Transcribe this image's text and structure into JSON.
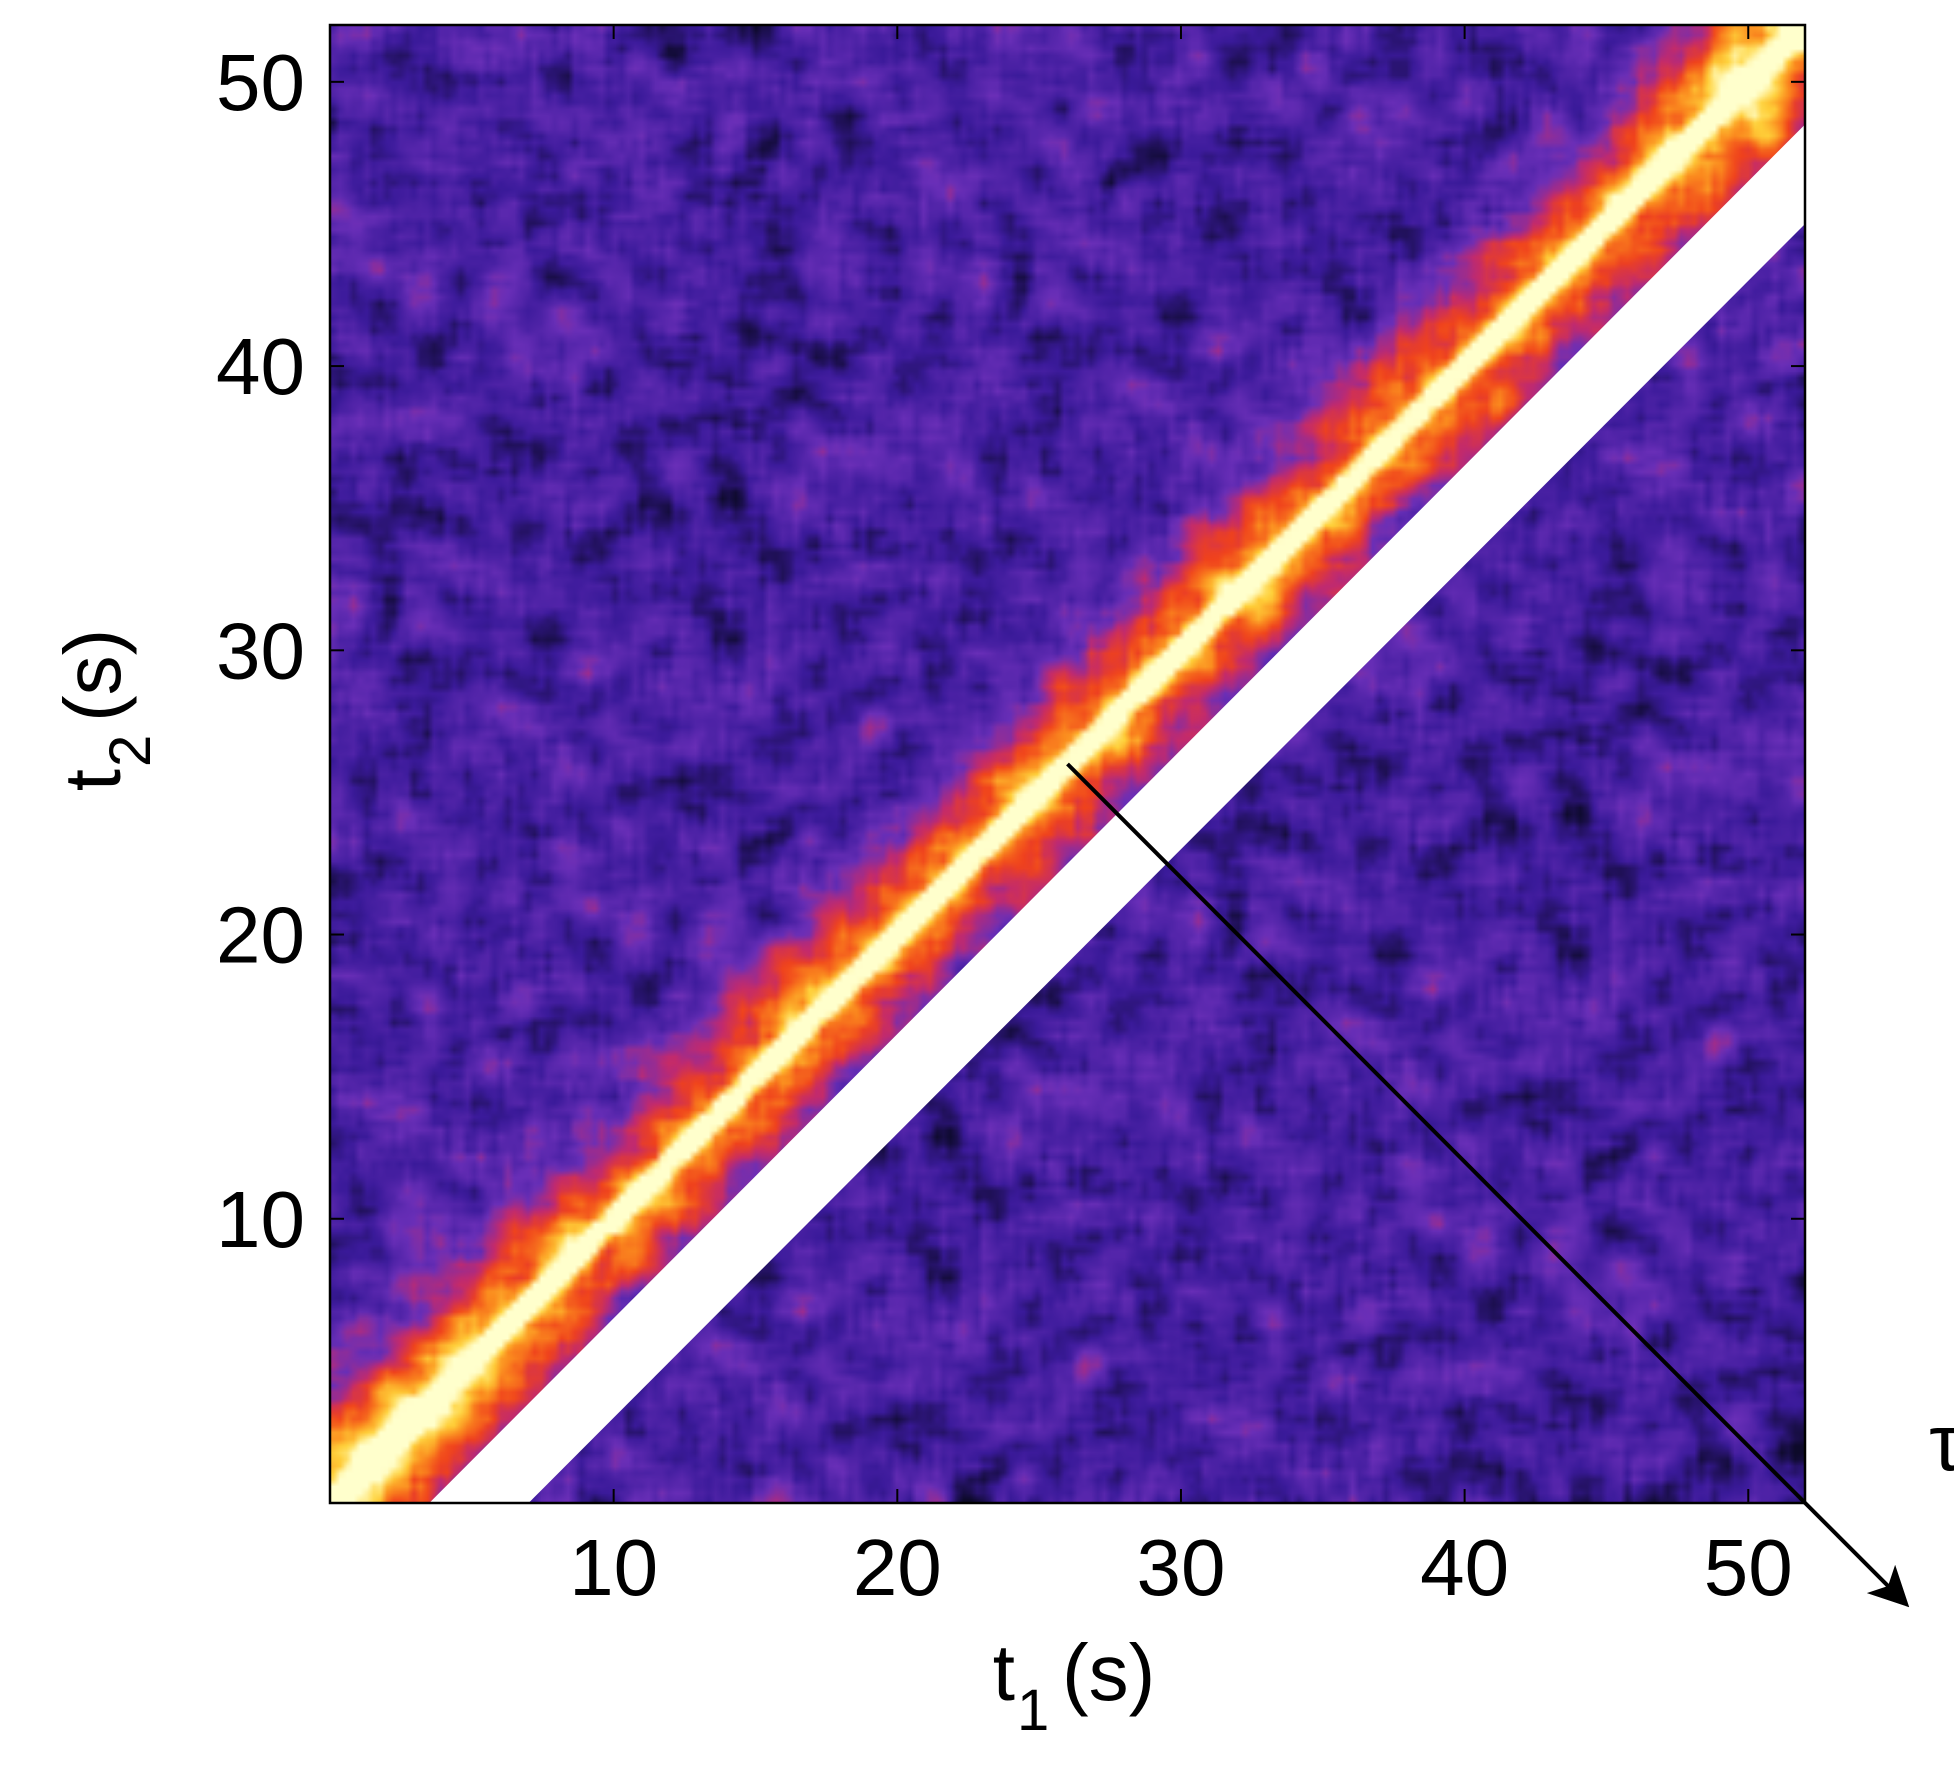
{
  "chart_data": {
    "type": "heatmap",
    "title": "",
    "xlabel": "t",
    "xlabel_sub": "1",
    "xlabel_unit": "(s)",
    "ylabel": "t",
    "ylabel_sub": "2",
    "ylabel_unit": "(s)",
    "xlim": [
      0,
      52
    ],
    "ylim": [
      0,
      52
    ],
    "x_ticks": [
      10,
      20,
      30,
      40,
      50
    ],
    "y_ticks": [
      10,
      20,
      30,
      40,
      50
    ],
    "x_tick_labels": [
      "10",
      "20",
      "30",
      "40",
      "50"
    ],
    "y_tick_labels": [
      "10",
      "20",
      "30",
      "40",
      "50"
    ],
    "grid": false,
    "colormap": [
      "#0d0a2a",
      "#3a1a9a",
      "#6a2fb8",
      "#c22a6e",
      "#f0421c",
      "#fb8a1e",
      "#ffd23a",
      "#ffffcc"
    ],
    "diagonal": {
      "x_start": 0,
      "x_end": 52,
      "peak_level": 1.0,
      "band_width_s": 5
    },
    "excluded_band": {
      "lag_min_s": 3.5,
      "lag_max_s": 7.0,
      "color": "#ffffff"
    },
    "arrow": {
      "label": "τ̃",
      "from": [
        26,
        26
      ],
      "to": [
        52,
        0
      ]
    }
  }
}
